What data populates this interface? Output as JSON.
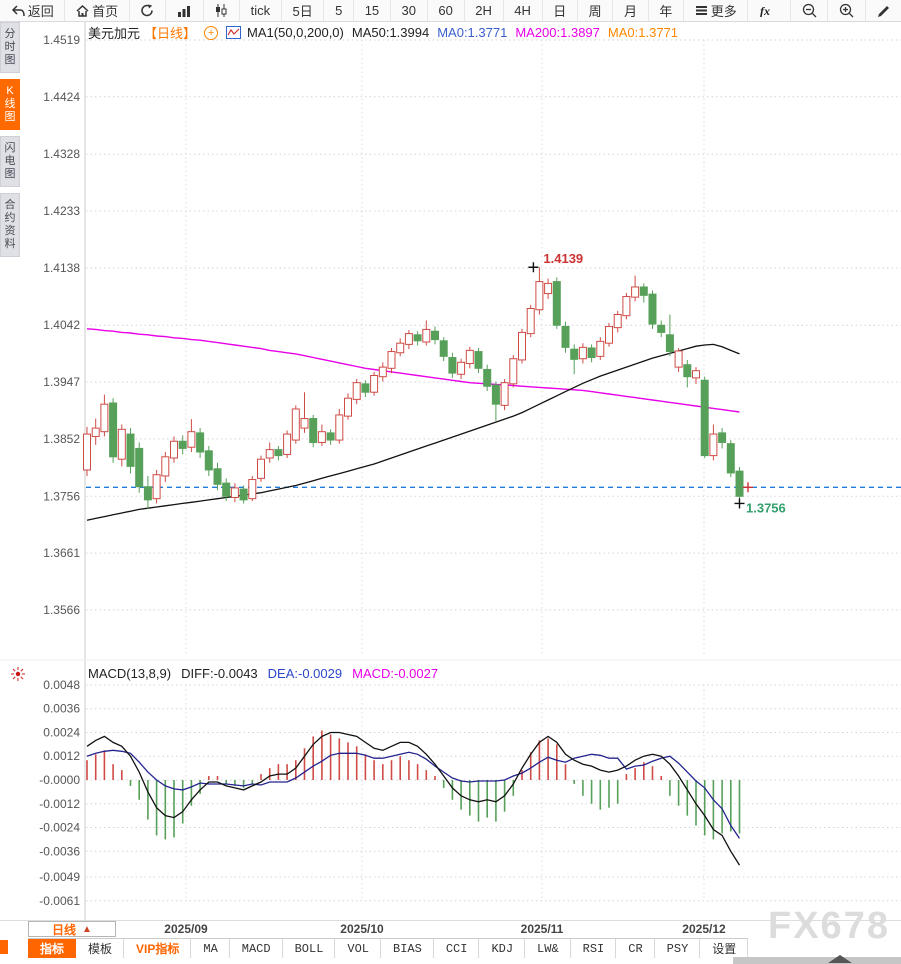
{
  "toolbar": {
    "items": [
      {
        "name": "back",
        "label": "返回",
        "icon": "back-arrow-icon"
      },
      {
        "name": "home",
        "label": "首页",
        "icon": "home-icon"
      },
      {
        "name": "refresh",
        "icon": "refresh-icon"
      },
      {
        "name": "bar-chart",
        "icon": "bar-chart-icon"
      },
      {
        "name": "candlestick",
        "icon": "candlestick-icon"
      },
      {
        "name": "tick",
        "label": "tick"
      },
      {
        "name": "5d",
        "label": "5日"
      },
      {
        "name": "m5",
        "label": "5"
      },
      {
        "name": "m15",
        "label": "15"
      },
      {
        "name": "m30",
        "label": "30"
      },
      {
        "name": "m60",
        "label": "60"
      },
      {
        "name": "h2",
        "label": "2H"
      },
      {
        "name": "h4",
        "label": "4H"
      },
      {
        "name": "day",
        "label": "日"
      },
      {
        "name": "week",
        "label": "周"
      },
      {
        "name": "month",
        "label": "月"
      },
      {
        "name": "year",
        "label": "年"
      },
      {
        "name": "more",
        "label": "更多",
        "icon": "menu-icon"
      },
      {
        "name": "formula",
        "icon": "fx-icon"
      },
      {
        "name": "zoom-out",
        "icon": "zoom-out-icon"
      },
      {
        "name": "zoom-in",
        "icon": "zoom-in-icon"
      },
      {
        "name": "draw",
        "icon": "pencil-icon"
      }
    ]
  },
  "sidebar": {
    "tabs": [
      {
        "label": "分时图",
        "active": false
      },
      {
        "label": "K线图",
        "active": true
      },
      {
        "label": "闪电图",
        "active": false
      },
      {
        "label": "合约资料",
        "active": false
      }
    ]
  },
  "chart_header": {
    "symbol": "美元加元",
    "period": "【日线】",
    "add_badge": "+",
    "ma_settings": "MA1(50,0,200,0)",
    "ma50": "MA50:1.3994",
    "ma0_blue": "MA0:1.3771",
    "ma200": "MA200:1.3897",
    "ma0_orange": "MA0:1.3771"
  },
  "macd_header": {
    "title": "MACD(13,8,9)",
    "diff": "DIFF:-0.0043",
    "dea": "DEA:-0.0029",
    "macd": "MACD:-0.0027"
  },
  "price_axis": [
    "1.4519",
    "1.4424",
    "1.4328",
    "1.4233",
    "1.4138",
    "1.4042",
    "1.3947",
    "1.3852",
    "1.3756",
    "1.3661",
    "1.3566"
  ],
  "macd_axis": [
    "0.0048",
    "0.0036",
    "0.0024",
    "0.0012",
    "-0.0000",
    "-0.0012",
    "-0.0024",
    "-0.0036",
    "-0.0049",
    "-0.0061"
  ],
  "x_axis_labels": [
    "2025/09",
    "2025/10",
    "2025/11",
    "2025/12"
  ],
  "annotations": {
    "high_label": "1.4139",
    "high_price": 1.4139,
    "current_label": "1.3756",
    "current_low": 1.3744,
    "dashed_price": 1.3771
  },
  "bottom_bar": {
    "period_button": {
      "label": "日线",
      "arrow": "▲"
    },
    "tabs": [
      {
        "label": "指标",
        "style": "active",
        "cjk": true
      },
      {
        "label": "模板",
        "cjk": true
      },
      {
        "label": "VIP指标",
        "style": "vip",
        "cjk": true
      },
      {
        "label": "MA"
      },
      {
        "label": "MACD"
      },
      {
        "label": "BOLL"
      },
      {
        "label": "VOL"
      },
      {
        "label": "BIAS"
      },
      {
        "label": "CCI"
      },
      {
        "label": "KDJ"
      },
      {
        "label": "LW&"
      },
      {
        "label": "RSI"
      },
      {
        "label": "CR"
      },
      {
        "label": "PSY"
      },
      {
        "label": "设置",
        "cjk": true
      }
    ]
  },
  "watermark": "FX678",
  "colors": {
    "up": "#cf4b45",
    "down": "#57a05a",
    "ma50": "#111111",
    "ma200": "#e800e8",
    "dea": "#23238e",
    "dashed": "#1f7bdc",
    "accent": "#ff6600",
    "blue_text": "#3b5fd0",
    "magenta_text": "#e800e8",
    "orange_text": "#ff8800",
    "high_label": "#cc3333",
    "current_label": "#35a06d"
  },
  "chart_data": {
    "type": "candlestick",
    "title": "美元加元 日线 (USD/CAD daily)",
    "price_range": [
      1.3566,
      1.4519
    ],
    "macd_range": [
      -0.0061,
      0.0048
    ],
    "candles": [
      [
        1.38,
        1.3872,
        1.379,
        1.386
      ],
      [
        1.3856,
        1.3886,
        1.3842,
        1.387
      ],
      [
        1.3864,
        1.3926,
        1.3856,
        1.391
      ],
      [
        1.3912,
        1.392,
        1.3812,
        1.3822
      ],
      [
        1.3818,
        1.3876,
        1.3806,
        1.3868
      ],
      [
        1.386,
        1.387,
        1.3794,
        1.3806
      ],
      [
        1.3836,
        1.3846,
        1.3762,
        1.3772
      ],
      [
        1.3772,
        1.379,
        1.3735,
        1.375
      ],
      [
        1.3752,
        1.38,
        1.3744,
        1.3792
      ],
      [
        1.379,
        1.383,
        1.378,
        1.3822
      ],
      [
        1.382,
        1.3856,
        1.3812,
        1.3848
      ],
      [
        1.3848,
        1.3858,
        1.3826,
        1.3836
      ],
      [
        1.3838,
        1.3885,
        1.383,
        1.3864
      ],
      [
        1.3862,
        1.387,
        1.382,
        1.383
      ],
      [
        1.3832,
        1.384,
        1.379,
        1.38
      ],
      [
        1.3802,
        1.3812,
        1.3766,
        1.3776
      ],
      [
        1.3778,
        1.3786,
        1.3748,
        1.3756
      ],
      [
        1.3754,
        1.3778,
        1.3746,
        1.377
      ],
      [
        1.3768,
        1.3774,
        1.3744,
        1.375
      ],
      [
        1.3752,
        1.379,
        1.3748,
        1.3784
      ],
      [
        1.3786,
        1.3824,
        1.378,
        1.3818
      ],
      [
        1.382,
        1.3846,
        1.3812,
        1.3834
      ],
      [
        1.3834,
        1.384,
        1.3816,
        1.3824
      ],
      [
        1.3826,
        1.3866,
        1.382,
        1.386
      ],
      [
        1.385,
        1.3908,
        1.3844,
        1.3902
      ],
      [
        1.387,
        1.393,
        1.3862,
        1.3886
      ],
      [
        1.3886,
        1.3892,
        1.3838,
        1.3846
      ],
      [
        1.3846,
        1.3876,
        1.384,
        1.3864
      ],
      [
        1.3862,
        1.3868,
        1.3842,
        1.385
      ],
      [
        1.385,
        1.3902,
        1.3844,
        1.3892
      ],
      [
        1.389,
        1.3928,
        1.3884,
        1.392
      ],
      [
        1.3918,
        1.3952,
        1.391,
        1.3946
      ],
      [
        1.3944,
        1.395,
        1.3922,
        1.393
      ],
      [
        1.393,
        1.3964,
        1.3924,
        1.3958
      ],
      [
        1.3956,
        1.398,
        1.3948,
        1.3972
      ],
      [
        1.397,
        1.4004,
        1.3962,
        1.3998
      ],
      [
        1.3996,
        1.402,
        1.399,
        1.4012
      ],
      [
        1.401,
        1.4034,
        1.4002,
        1.4028
      ],
      [
        1.4026,
        1.4032,
        1.4008,
        1.4016
      ],
      [
        1.4014,
        1.405,
        1.4008,
        1.4035
      ],
      [
        1.4032,
        1.404,
        1.401,
        1.4018
      ],
      [
        1.4016,
        1.4022,
        1.3982,
        1.399
      ],
      [
        1.3988,
        1.3996,
        1.3954,
        1.3962
      ],
      [
        1.396,
        1.3986,
        1.3952,
        1.398
      ],
      [
        1.3978,
        1.4006,
        1.397,
        1.4
      ],
      [
        1.3998,
        1.4004,
        1.3962,
        1.397
      ],
      [
        1.3968,
        1.3976,
        1.3932,
        1.394
      ],
      [
        1.3942,
        1.3948,
        1.3882,
        1.391
      ],
      [
        1.3908,
        1.3952,
        1.39,
        1.3946
      ],
      [
        1.3944,
        1.3992,
        1.3938,
        1.3986
      ],
      [
        1.3984,
        1.4036,
        1.3978,
        1.403
      ],
      [
        1.4028,
        1.4076,
        1.4022,
        1.407
      ],
      [
        1.4068,
        1.4139,
        1.406,
        1.4115
      ],
      [
        1.4095,
        1.412,
        1.4086,
        1.4112
      ],
      [
        1.4115,
        1.4122,
        1.4036,
        1.4042
      ],
      [
        1.404,
        1.4048,
        1.3996,
        1.4005
      ],
      [
        1.4002,
        1.401,
        1.396,
        1.3985
      ],
      [
        1.3986,
        1.4012,
        1.3978,
        1.4005
      ],
      [
        1.4004,
        1.401,
        1.398,
        1.3988
      ],
      [
        1.399,
        1.4022,
        1.3984,
        1.4015
      ],
      [
        1.4012,
        1.4046,
        1.4006,
        1.404
      ],
      [
        1.4038,
        1.4066,
        1.403,
        1.406
      ],
      [
        1.4058,
        1.4096,
        1.4052,
        1.409
      ],
      [
        1.4089,
        1.4125,
        1.4082,
        1.4106
      ],
      [
        1.4106,
        1.4112,
        1.408,
        1.4092
      ],
      [
        1.4094,
        1.41,
        1.4036,
        1.4044
      ],
      [
        1.4042,
        1.405,
        1.4022,
        1.403
      ],
      [
        1.4026,
        1.406,
        1.399,
        1.3998
      ],
      [
        1.3972,
        1.4004,
        1.3964,
        1.3999
      ],
      [
        1.3976,
        1.3984,
        1.3938,
        1.3956
      ],
      [
        1.3954,
        1.3972,
        1.3944,
        1.3966
      ],
      [
        1.395,
        1.3956,
        1.382,
        1.3824
      ],
      [
        1.3824,
        1.3876,
        1.3816,
        1.386
      ],
      [
        1.3862,
        1.387,
        1.3836,
        1.3846
      ],
      [
        1.3844,
        1.385,
        1.3788,
        1.3795
      ],
      [
        1.3798,
        1.3805,
        1.3744,
        1.3756
      ]
    ],
    "ma50": [
      1.3716,
      1.3719,
      1.3722,
      1.3725,
      1.3728,
      1.3731,
      1.3734,
      1.3736,
      1.3738,
      1.374,
      1.3742,
      1.3744,
      1.3746,
      1.3748,
      1.375,
      1.3752,
      1.3754,
      1.3756,
      1.3758,
      1.376,
      1.3762,
      1.3765,
      1.3768,
      1.3771,
      1.3774,
      1.3778,
      1.3782,
      1.3786,
      1.379,
      1.3794,
      1.3798,
      1.3802,
      1.3806,
      1.381,
      1.3815,
      1.382,
      1.3825,
      1.383,
      1.3835,
      1.384,
      1.3845,
      1.385,
      1.3855,
      1.386,
      1.3865,
      1.387,
      1.3875,
      1.388,
      1.3885,
      1.389,
      1.3896,
      1.3903,
      1.391,
      1.3917,
      1.3924,
      1.3931,
      1.3938,
      1.3945,
      1.3951,
      1.3957,
      1.3962,
      1.3967,
      1.3972,
      1.3977,
      1.3982,
      1.3987,
      1.3991,
      1.3995,
      1.3999,
      1.4003,
      1.4007,
      1.4009,
      1.401,
      1.4006,
      1.4,
      1.3994
    ],
    "ma200": [
      1.4036,
      1.4035,
      1.4033,
      1.4032,
      1.403,
      1.4029,
      1.4027,
      1.4026,
      1.4024,
      1.4023,
      1.4021,
      1.402,
      1.4018,
      1.4017,
      1.4015,
      1.4013,
      1.4011,
      1.4009,
      1.4007,
      1.4005,
      1.4003,
      1.4,
      1.3998,
      1.3996,
      1.3994,
      1.3991,
      1.3988,
      1.3985,
      1.3982,
      1.3979,
      1.3976,
      1.3973,
      1.397,
      1.3968,
      1.3966,
      1.3964,
      1.3962,
      1.396,
      1.3958,
      1.3956,
      1.3954,
      1.3952,
      1.395,
      1.3948,
      1.3946,
      1.3945,
      1.3944,
      1.3943,
      1.3942,
      1.3941,
      1.394,
      1.3939,
      1.3938,
      1.3937,
      1.3936,
      1.3935,
      1.3934,
      1.3933,
      1.3931,
      1.3929,
      1.3927,
      1.3925,
      1.3923,
      1.3921,
      1.3919,
      1.3917,
      1.3915,
      1.3913,
      1.3911,
      1.3909,
      1.3907,
      1.3905,
      1.3903,
      1.3901,
      1.3899,
      1.3897
    ],
    "macd": {
      "bars": [
        0.001,
        0.0013,
        0.0015,
        0.0008,
        0.0005,
        -0.0003,
        -0.001,
        -0.002,
        -0.0028,
        -0.003,
        -0.0029,
        -0.0022,
        -0.0013,
        -0.0007,
        0.0002,
        0.0002,
        -0.0002,
        -0.0003,
        -0.0004,
        -0.0002,
        0.0003,
        0.0006,
        0.0008,
        0.0008,
        0.001,
        0.0016,
        0.0022,
        0.0025,
        0.0023,
        0.0021,
        0.0019,
        0.0017,
        0.0013,
        0.001,
        0.0008,
        0.001,
        0.0012,
        0.001,
        0.0008,
        0.0005,
        0.0002,
        -0.0004,
        -0.001,
        -0.0015,
        -0.0018,
        -0.0021,
        -0.0019,
        -0.0021,
        -0.0016,
        -0.0008,
        0.0005,
        0.0014,
        0.002,
        0.0021,
        0.0018,
        0.0008,
        -0.0002,
        -0.0008,
        -0.0012,
        -0.0015,
        -0.0014,
        -0.0012,
        0.0003,
        0.0006,
        0.0009,
        0.0007,
        0.0002,
        -0.0008,
        -0.0013,
        -0.0018,
        -0.0023,
        -0.0028,
        -0.003,
        -0.0027,
        -0.0026,
        -0.0027
      ],
      "diff": [
        0.0017,
        0.002,
        0.0022,
        0.0019,
        0.0017,
        0.0012,
        0.0004,
        -0.0006,
        -0.0014,
        -0.0018,
        -0.0019,
        -0.0016,
        -0.001,
        -0.0005,
        -0.0001,
        -0.0001,
        -0.0003,
        -0.0004,
        -0.0005,
        -0.0003,
        -0.0001,
        0.0002,
        0.0003,
        0.0003,
        0.0006,
        0.0012,
        0.0018,
        0.0022,
        0.0024,
        0.0024,
        0.0023,
        0.0022,
        0.0019,
        0.0016,
        0.0015,
        0.0017,
        0.0019,
        0.0019,
        0.0017,
        0.0013,
        0.0008,
        0.0002,
        -0.0004,
        -0.0008,
        -0.001,
        -0.0011,
        -0.001,
        -0.0011,
        -0.0008,
        -0.0002,
        0.0006,
        0.0013,
        0.0019,
        0.0022,
        0.0019,
        0.0013,
        0.001,
        0.0008,
        0.0007,
        0.0005,
        0.0004,
        0.0005,
        0.0007,
        0.001,
        0.0012,
        0.0013,
        0.0012,
        0.0008,
        0.0002,
        -0.0005,
        -0.0012,
        -0.0018,
        -0.0025,
        -0.0028,
        -0.0036,
        -0.0043
      ]
    }
  }
}
